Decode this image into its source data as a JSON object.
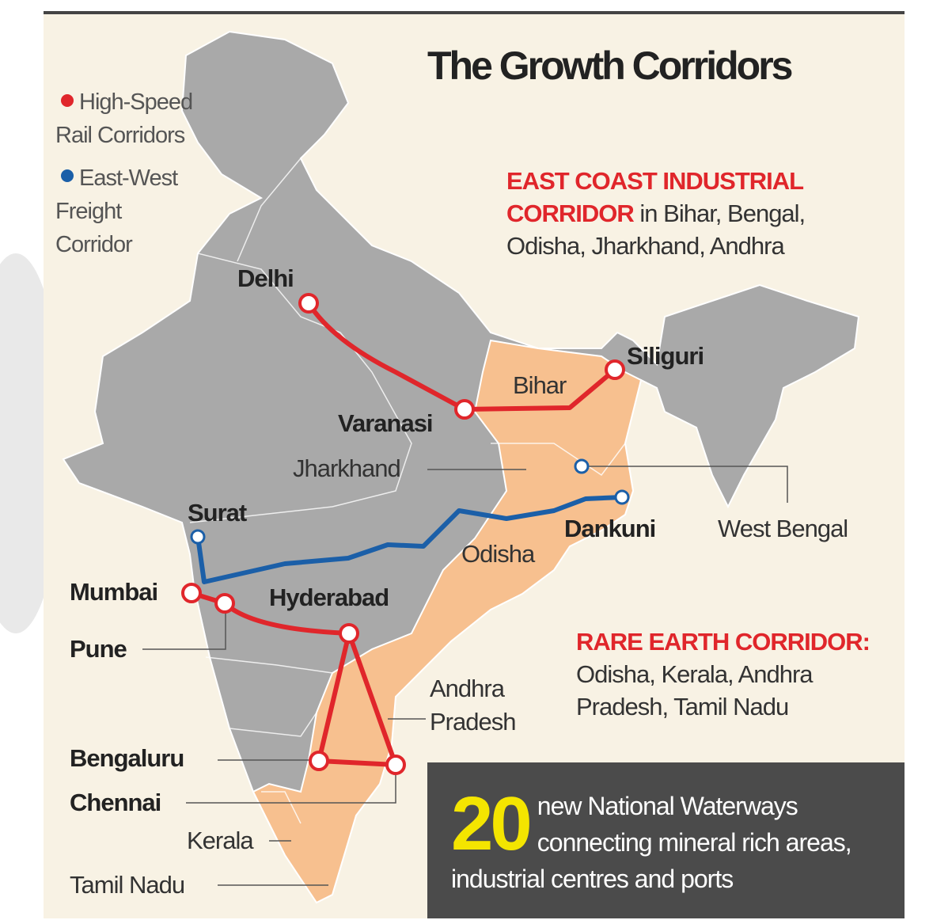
{
  "title": "The Growth Corridors",
  "legend": [
    {
      "lines": [
        "High-Speed",
        "Rail Corridors"
      ]
    },
    {
      "lines": [
        "East-West",
        "Freight",
        "Corridor"
      ]
    }
  ],
  "east_coast": {
    "heading": "EAST COAST INDUSTRIAL CORRIDOR",
    "text": "in Bihar, Bengal, Odisha, Jharkhand, Andhra"
  },
  "rare_earth": {
    "heading": "RARE EARTH CORRIDOR:",
    "text": "Odisha, Kerala, Andhra Pradesh, Tamil Nadu"
  },
  "waterways": {
    "number": 20,
    "text": "new National Waterways connecting mineral rich areas, industrial centres and ports"
  },
  "cities": [
    "Delhi",
    "Siliguri",
    "Varanasi",
    "Surat",
    "Dankuni",
    "Mumbai",
    "Hyderabad",
    "Pune",
    "Bengaluru",
    "Chennai"
  ],
  "states": {
    "bihar": "Bihar",
    "jharkhand": "Jharkhand",
    "odisha": "Odisha",
    "west_bengal": "West Bengal",
    "andhra_pradesh": [
      "Andhra",
      "Pradesh"
    ],
    "kerala": "Kerala",
    "tamil_nadu": "Tamil Nadu"
  }
}
